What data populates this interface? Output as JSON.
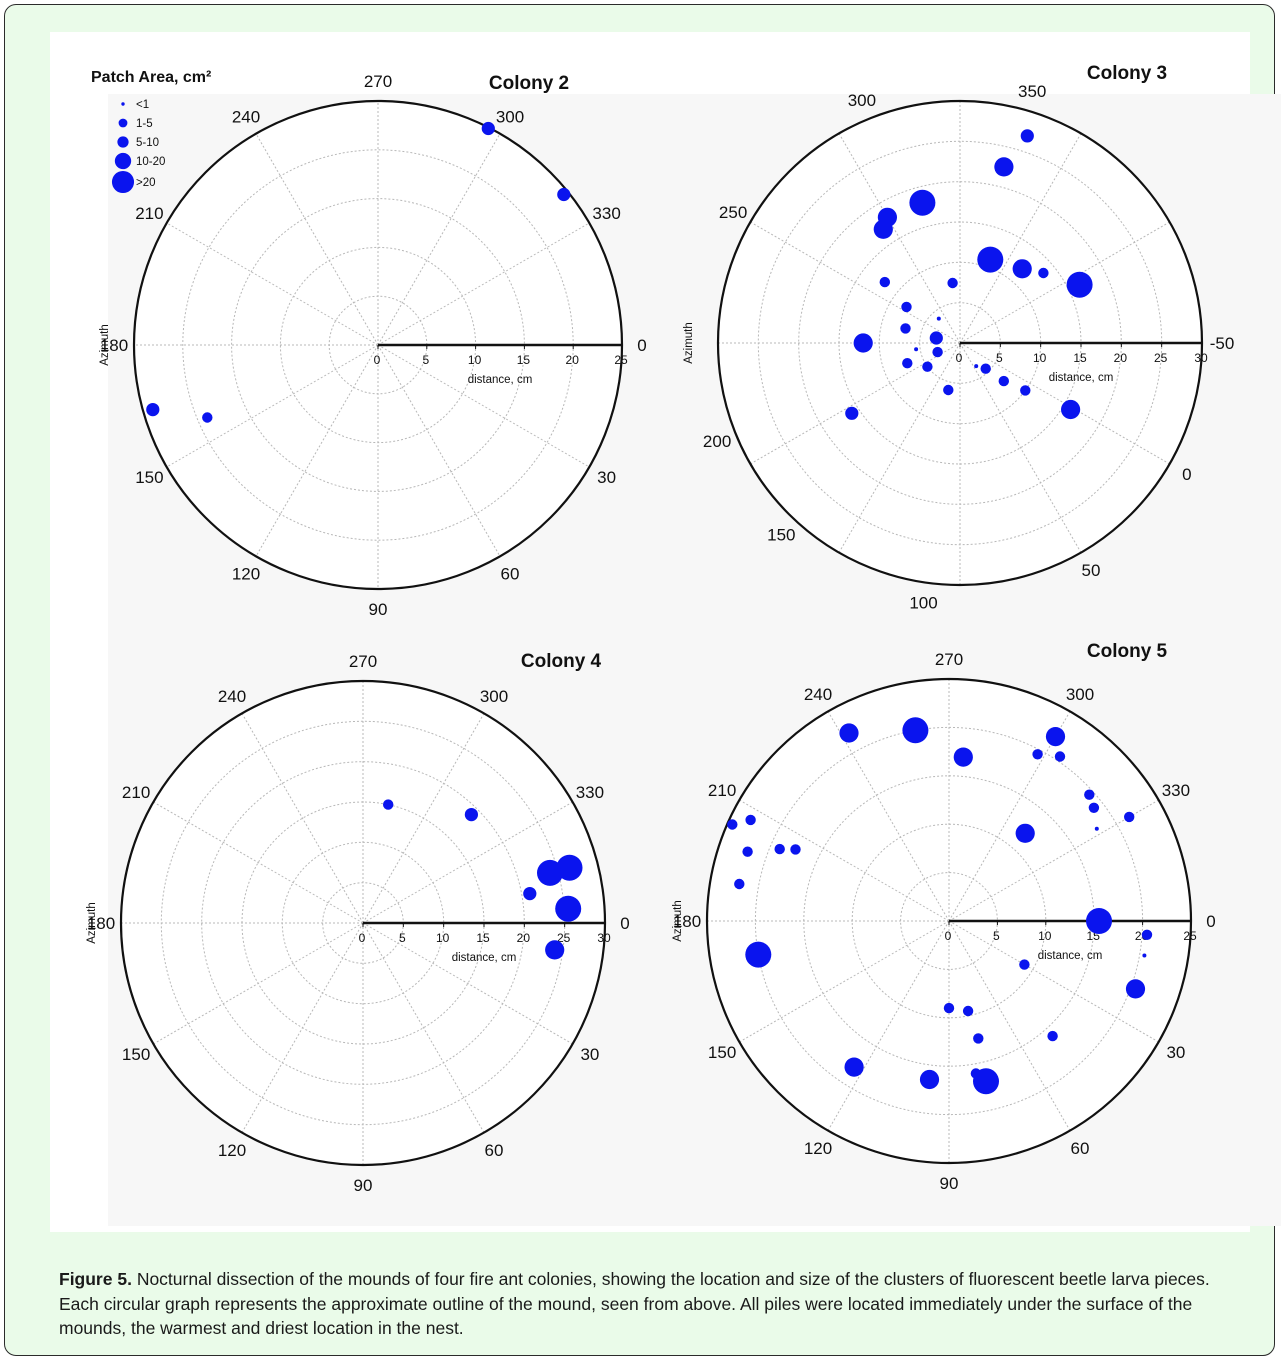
{
  "caption": {
    "label": "Figure 5.",
    "text": "Nocturnal dissection of the mounds of four fire ant colonies, showing the location and size of the clusters of fluorescent beetle larva pieces. Each circular graph represents the approximate outline of the mound, seen from above. All piles were located immediately under the surface of the mounds, the warmest and driest location in the nest."
  },
  "colors": {
    "marker": "#0a14ee",
    "panel_background": "#eafbe9",
    "figure_background": "#ffffff",
    "grid": "#b8b8b8"
  },
  "chart_data": [
    {
      "type": "scatter",
      "subtype": "polar",
      "title": "Colony 2",
      "ylabel": "Azimuth",
      "xlabel": "distance, cm",
      "radial_range": [
        0,
        25
      ],
      "radial_ticks": [
        "0",
        "5",
        "10",
        "15",
        "20",
        "25"
      ],
      "angle_labels": [
        "270",
        "300",
        "330",
        "0",
        "30",
        "60",
        "90",
        "120",
        "150",
        "180",
        "210",
        "240"
      ],
      "grid": true,
      "legend": {
        "title": "Patch Area, cm²",
        "placement": "top-left",
        "entries": [
          "<1",
          "1-5",
          "5-10",
          "10-20",
          ">20"
        ]
      },
      "points": [
        {
          "azimuth": 297,
          "distance": 24.9,
          "size_class": "5-10"
        },
        {
          "azimuth": 321,
          "distance": 24.5,
          "size_class": "5-10"
        },
        {
          "azimuth": 164,
          "distance": 24,
          "size_class": "5-10"
        },
        {
          "azimuth": 157,
          "distance": 19,
          "size_class": "1-5"
        }
      ]
    },
    {
      "type": "scatter",
      "subtype": "polar",
      "title": "Colony 3",
      "ylabel": "Azimuth",
      "xlabel": "distance, cm",
      "radial_range": [
        0,
        30
      ],
      "radial_ticks": [
        "0",
        "5",
        "10",
        "15",
        "20",
        "25",
        "30"
      ],
      "angle_labels": [
        "-50",
        "0",
        "50",
        "100",
        "150",
        "200",
        "250",
        "300",
        "350"
      ],
      "grid": true,
      "points": [
        {
          "azimuth": 31,
          "distance": 16,
          "size_class": "10-20"
        },
        {
          "azimuth": 45,
          "distance": 4.5,
          "size_class": "1-5"
        },
        {
          "azimuth": 55,
          "distance": 3.5,
          "size_class": "<1"
        },
        {
          "azimuth": 41,
          "distance": 7.2,
          "size_class": "1-5"
        },
        {
          "azimuth": 36,
          "distance": 10,
          "size_class": "1-5"
        },
        {
          "azimuth": 104,
          "distance": 6,
          "size_class": "1-5"
        },
        {
          "azimuth": 147,
          "distance": 16,
          "size_class": "5-10"
        },
        {
          "azimuth": 144,
          "distance": 5,
          "size_class": "1-5"
        },
        {
          "azimuth": 159,
          "distance": 7,
          "size_class": "1-5"
        },
        {
          "azimuth": 158,
          "distance": 3,
          "size_class": "1-5"
        },
        {
          "azimuth": 172,
          "distance": 5.5,
          "size_class": "<1"
        },
        {
          "azimuth": 180,
          "distance": 12,
          "size_class": "10-20"
        },
        {
          "azimuth": 192,
          "distance": 3,
          "size_class": "5-10"
        },
        {
          "azimuth": 195,
          "distance": 7,
          "size_class": "1-5"
        },
        {
          "azimuth": 214,
          "distance": 8,
          "size_class": "1-5"
        },
        {
          "azimuth": 219,
          "distance": 12,
          "size_class": "1-5"
        },
        {
          "azimuth": 236,
          "distance": 17,
          "size_class": "10-20"
        },
        {
          "azimuth": 240,
          "distance": 18,
          "size_class": "10-20"
        },
        {
          "azimuth": 255,
          "distance": 18,
          "size_class": ">20"
        },
        {
          "azimuth": 229,
          "distance": 4,
          "size_class": "<1"
        },
        {
          "azimuth": 263,
          "distance": 7.5,
          "size_class": "1-5"
        },
        {
          "azimuth": 290,
          "distance": 11,
          "size_class": ">20"
        },
        {
          "azimuth": 310,
          "distance": 12,
          "size_class": "10-20"
        },
        {
          "azimuth": 320,
          "distance": 13.5,
          "size_class": "1-5"
        },
        {
          "azimuth": 334,
          "distance": 16.5,
          "size_class": ">20"
        },
        {
          "azimuth": 284,
          "distance": 22.5,
          "size_class": "10-20"
        },
        {
          "azimuth": 288,
          "distance": 27,
          "size_class": "5-10"
        }
      ]
    },
    {
      "type": "scatter",
      "subtype": "polar",
      "title": "Colony 4",
      "ylabel": "Azimuth",
      "xlabel": "distance, cm",
      "radial_range": [
        0,
        30
      ],
      "radial_ticks": [
        "0",
        "5",
        "10",
        "15",
        "20",
        "25",
        "30"
      ],
      "angle_labels": [
        "270",
        "300",
        "330",
        "0",
        "30",
        "60",
        "90",
        "120",
        "150",
        "180",
        "210",
        "240"
      ],
      "grid": true,
      "points": [
        {
          "azimuth": 282,
          "distance": 15,
          "size_class": "1-5"
        },
        {
          "azimuth": 315,
          "distance": 19,
          "size_class": "5-10"
        },
        {
          "azimuth": 345,
          "distance": 24,
          "size_class": ">20"
        },
        {
          "azimuth": 345,
          "distance": 26.5,
          "size_class": ">20"
        },
        {
          "azimuth": 350,
          "distance": 21,
          "size_class": "5-10"
        },
        {
          "azimuth": 356,
          "distance": 25.5,
          "size_class": ">20"
        },
        {
          "azimuth": 8,
          "distance": 24,
          "size_class": "10-20"
        }
      ]
    },
    {
      "type": "scatter",
      "subtype": "polar",
      "title": "Colony 5",
      "ylabel": "Azimuth",
      "xlabel": "distance, cm",
      "radial_range": [
        0,
        25
      ],
      "radial_ticks": [
        "0",
        "5",
        "10",
        "15",
        "20",
        "25"
      ],
      "angle_labels": [
        "270",
        "300",
        "330",
        "0",
        "30",
        "60",
        "90",
        "120",
        "150",
        "180",
        "210",
        "240"
      ],
      "grid": true,
      "points": [
        {
          "azimuth": 300,
          "distance": 22,
          "size_class": "10-20"
        },
        {
          "azimuth": 298,
          "distance": 19.5,
          "size_class": "1-5"
        },
        {
          "azimuth": 304,
          "distance": 20.5,
          "size_class": "1-5"
        },
        {
          "azimuth": 318,
          "distance": 19.5,
          "size_class": "1-5"
        },
        {
          "azimuth": 322,
          "distance": 19,
          "size_class": "1-5"
        },
        {
          "azimuth": 330,
          "distance": 21.5,
          "size_class": "1-5"
        },
        {
          "azimuth": 328,
          "distance": 18,
          "size_class": "<1"
        },
        {
          "azimuth": 311,
          "distance": 12,
          "size_class": "10-20"
        },
        {
          "azimuth": 275,
          "distance": 17,
          "size_class": "10-20"
        },
        {
          "azimuth": 260,
          "distance": 20,
          "size_class": ">20"
        },
        {
          "azimuth": 242,
          "distance": 22,
          "size_class": "10-20"
        },
        {
          "azimuth": 207,
          "distance": 23,
          "size_class": "1-5"
        },
        {
          "azimuth": 204,
          "distance": 24.5,
          "size_class": "1-5"
        },
        {
          "azimuth": 199,
          "distance": 22,
          "size_class": "1-5"
        },
        {
          "azimuth": 203,
          "distance": 19,
          "size_class": "1-5"
        },
        {
          "azimuth": 205,
          "distance": 17.5,
          "size_class": "1-5"
        },
        {
          "azimuth": 190,
          "distance": 22,
          "size_class": "1-5"
        },
        {
          "azimuth": 170,
          "distance": 20,
          "size_class": ">20"
        },
        {
          "azimuth": 0,
          "distance": 15.5,
          "size_class": ">20"
        },
        {
          "azimuth": 4,
          "distance": 20.5,
          "size_class": "1-5"
        },
        {
          "azimuth": 10,
          "distance": 20.5,
          "size_class": "<1"
        },
        {
          "azimuth": 20,
          "distance": 20.5,
          "size_class": "10-20"
        },
        {
          "azimuth": 30,
          "distance": 9,
          "size_class": "1-5"
        },
        {
          "azimuth": 48,
          "distance": 16,
          "size_class": "1-5"
        },
        {
          "azimuth": 90,
          "distance": 9,
          "size_class": "1-5"
        },
        {
          "azimuth": 78,
          "distance": 9.5,
          "size_class": "1-5"
        },
        {
          "azimuth": 76,
          "distance": 12.5,
          "size_class": "1-5"
        },
        {
          "azimuth": 80,
          "distance": 16,
          "size_class": "1-5"
        },
        {
          "azimuth": 77,
          "distance": 17,
          "size_class": ">20"
        },
        {
          "azimuth": 97,
          "distance": 16.5,
          "size_class": "10-20"
        },
        {
          "azimuth": 123,
          "distance": 18,
          "size_class": "10-20"
        }
      ]
    }
  ]
}
